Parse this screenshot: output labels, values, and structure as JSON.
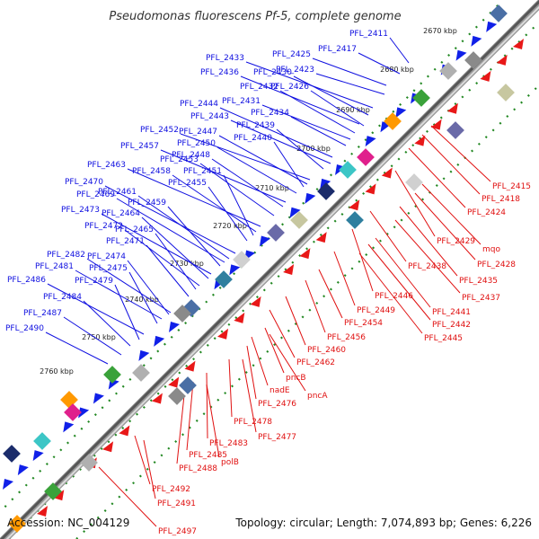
{
  "title": "Pseudomonas fluorescens Pf-5, complete genome",
  "accession": "Accession: NC_004129",
  "summary": "Topology: circular; Length: 7,074,893 bp; Genes: 6,226",
  "colors": {
    "forward_label": "#1010e0",
    "reverse_label": "#e01010",
    "forward_gene": "#1020e8",
    "reverse_gene": "#e81818",
    "backbone": "#555555",
    "dots": "#228822"
  },
  "scale_ticks": [
    "2670 kbp",
    "2680 kbp",
    "2690 kbp",
    "2700 kbp",
    "2710 kbp",
    "2720 kbp",
    "2730 kbp",
    "2740 kbp",
    "2750 kbp",
    "2760 kbp"
  ],
  "forward_labels": [
    "PFL_2411",
    "PFL_2417",
    "PFL_2425",
    "PFL_2423",
    "PFL_2433",
    "PFL_2430",
    "PFL_2436",
    "PFL_2426",
    "PFL_2432",
    "PFL_2431",
    "PFL_2434",
    "PFL_2444",
    "PFL_2443",
    "PFL_2439",
    "PFL_2452",
    "PFL_2447",
    "PFL_2440",
    "PFL_2450",
    "PFL_2457",
    "PFL_2448",
    "PFL_2453",
    "PFL_2463",
    "PFL_2458",
    "PFL_2451",
    "PFL_2455",
    "PFL_2470",
    "PFL_2461",
    "PFL_2469",
    "PFL_2459",
    "PFL_2473",
    "PFL_2464",
    "PFL_2472",
    "PFL_2465",
    "PFL_2471",
    "PFL_2482",
    "PFL_2474",
    "PFL_2481",
    "PFL_2475",
    "PFL_2486",
    "PFL_2479",
    "PFL_2484",
    "PFL_2487",
    "PFL_2490"
  ],
  "reverse_labels": [
    "PFL_2415",
    "PFL_2418",
    "PFL_2424",
    "PFL_2429",
    "mqo",
    "PFL_2428",
    "PFL_2438",
    "PFL_2435",
    "PFL_2446",
    "PFL_2437",
    "PFL_2441",
    "PFL_2449",
    "PFL_2442",
    "PFL_2454",
    "PFL_2445",
    "PFL_2456",
    "PFL_2460",
    "PFL_2462",
    "pncB",
    "nadE",
    "pncA",
    "PFL_2476",
    "PFL_2478",
    "PFL_2477",
    "PFL_2483",
    "PFL_2485",
    "polB",
    "PFL_2488",
    "PFL_2492",
    "PFL_2491",
    "PFL_2497"
  ]
}
